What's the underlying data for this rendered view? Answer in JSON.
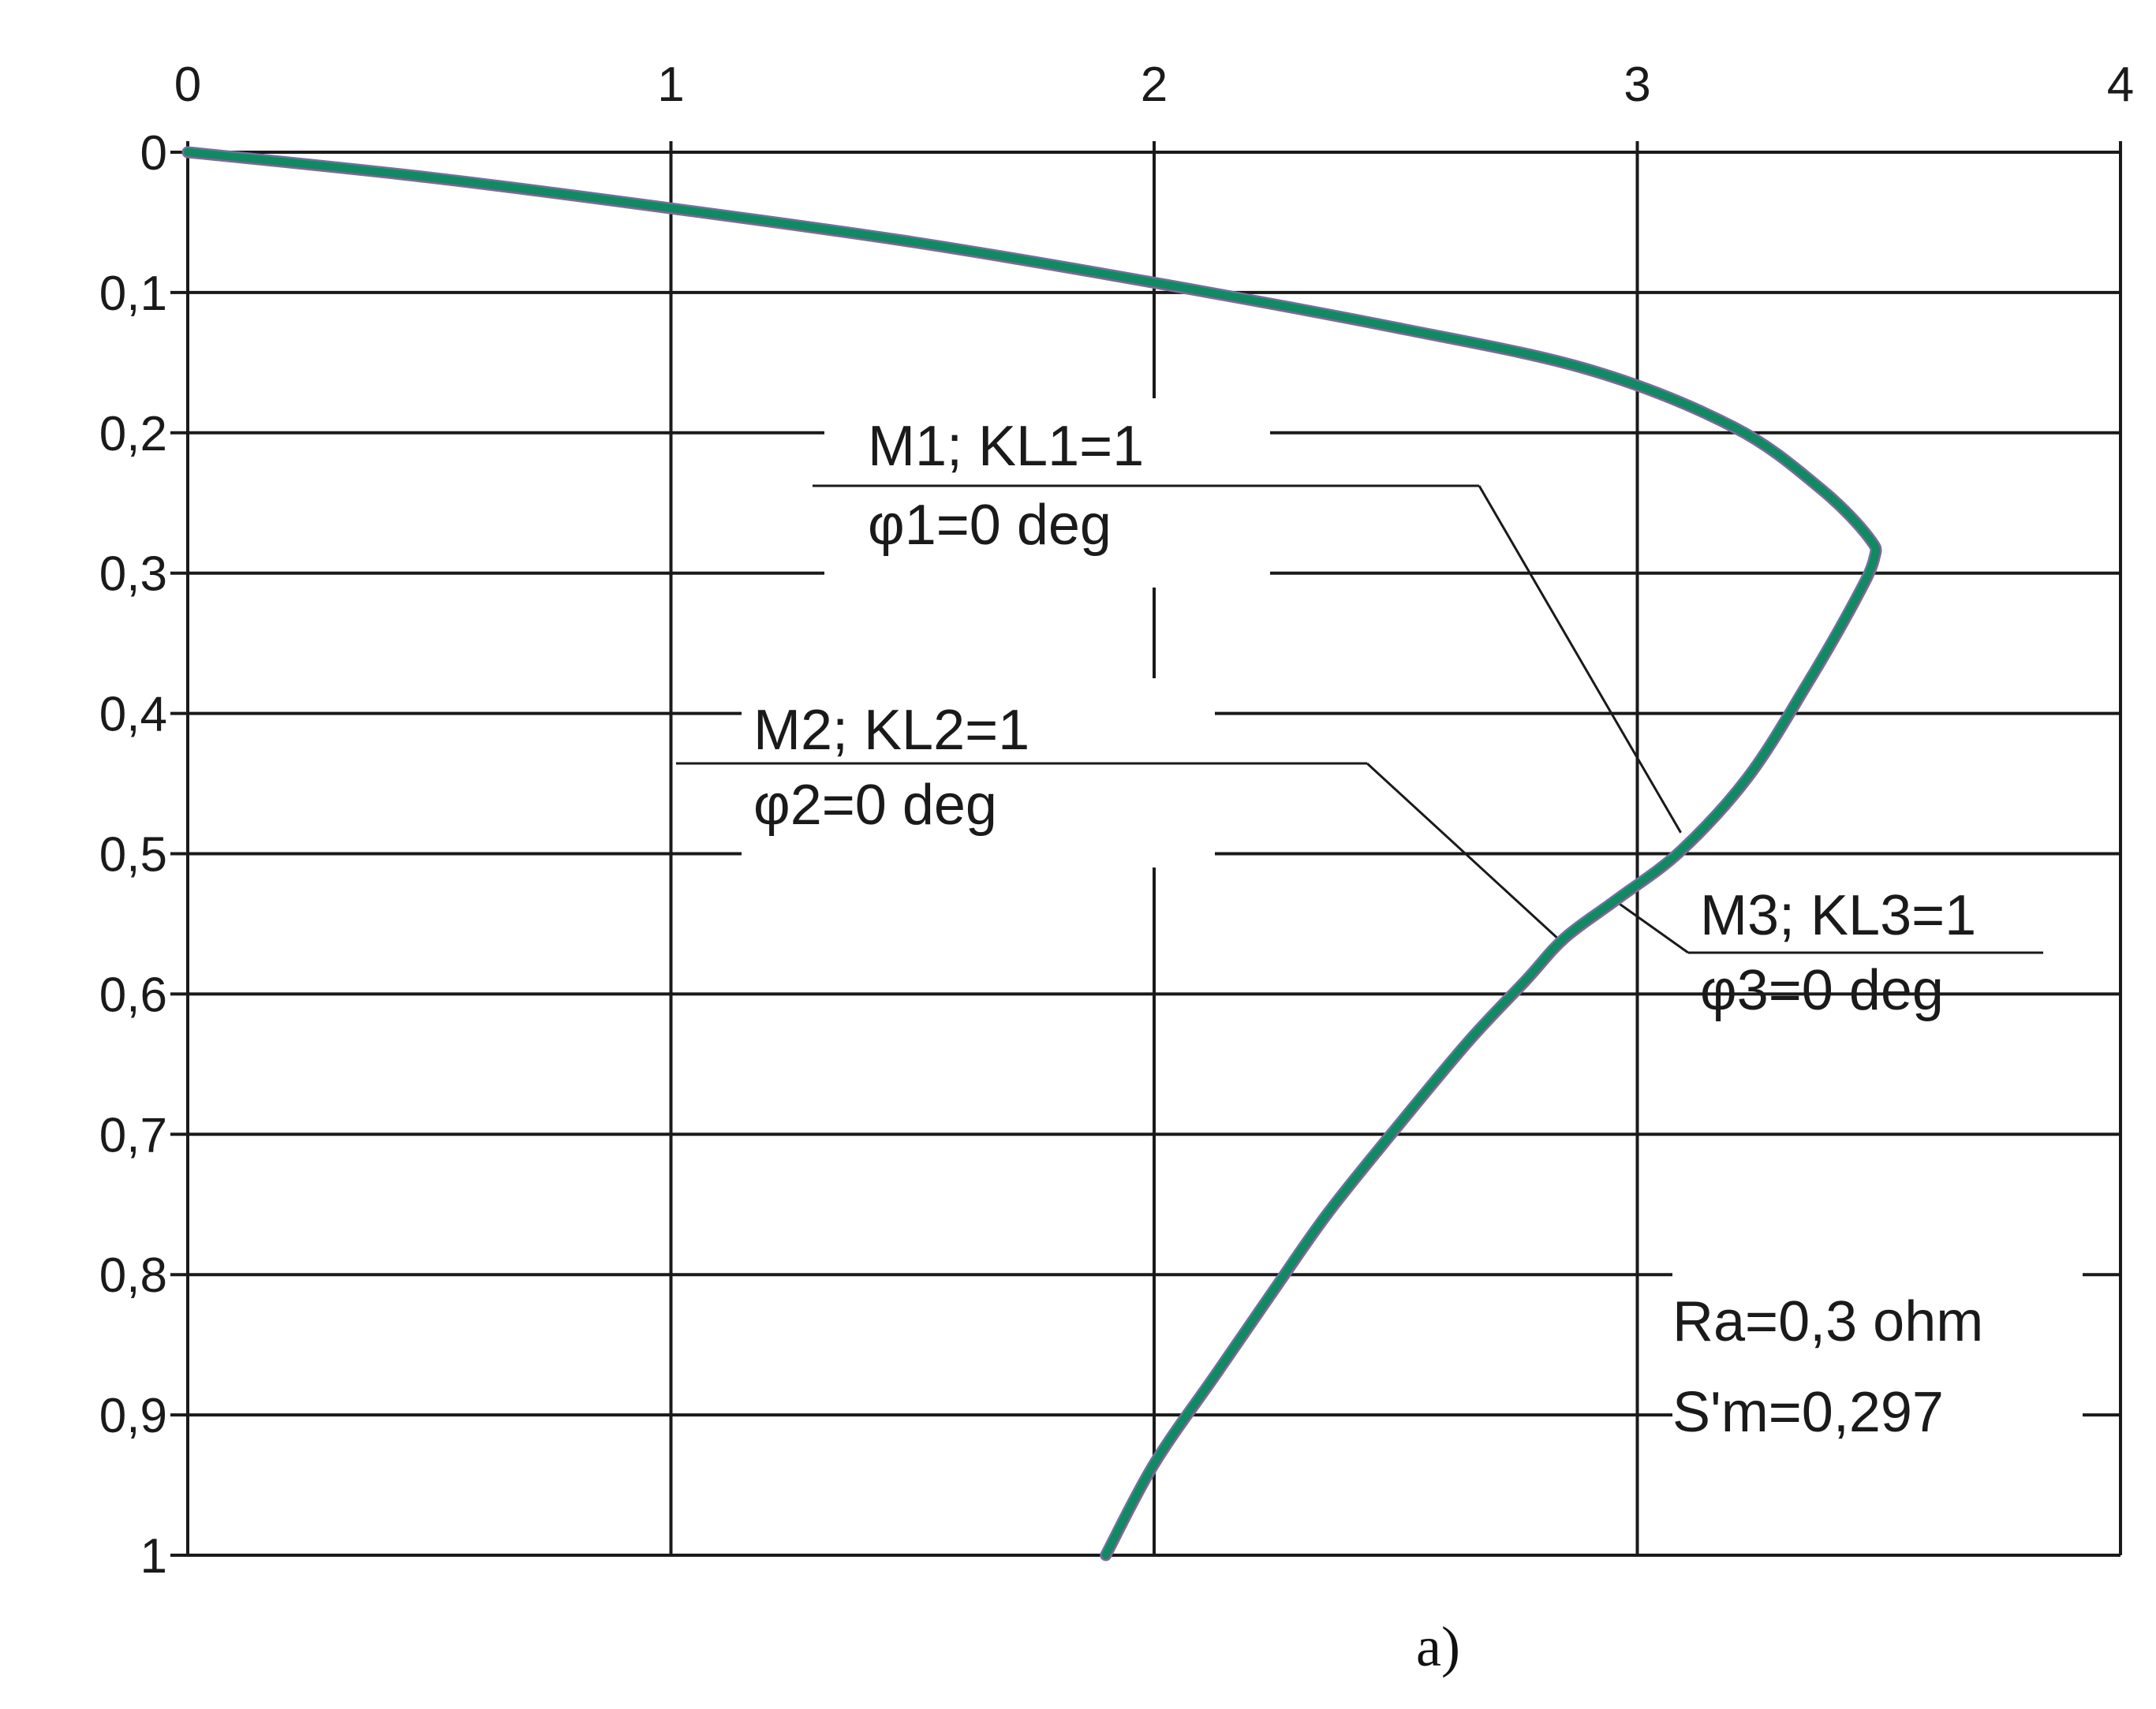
{
  "chart_data": {
    "type": "line",
    "x_axis": {
      "position": "top",
      "range": [
        0,
        4
      ],
      "ticks": [
        "0",
        "1",
        "2",
        "3",
        "4"
      ]
    },
    "y_axis": {
      "direction": "downward",
      "range": [
        0,
        1
      ],
      "ticks": [
        "0",
        "0,1",
        "0,2",
        "0,3",
        "0,4",
        "0,5",
        "0,6",
        "0,7",
        "0,8",
        "0,9",
        "1"
      ]
    },
    "grid": true,
    "series": [
      {
        "color": "#0f8a62",
        "points": [
          [
            0,
            0
          ],
          [
            0.5,
            0.018
          ],
          [
            1.0,
            0.04
          ],
          [
            1.5,
            0.064
          ],
          [
            2.0,
            0.093
          ],
          [
            2.5,
            0.125
          ],
          [
            2.9,
            0.155
          ],
          [
            3.2,
            0.196
          ],
          [
            3.38,
            0.24
          ],
          [
            3.48,
            0.275
          ],
          [
            3.49,
            0.29
          ],
          [
            3.45,
            0.32
          ],
          [
            3.35,
            0.38
          ],
          [
            3.23,
            0.445
          ],
          [
            3.09,
            0.498
          ],
          [
            2.96,
            0.532
          ],
          [
            2.85,
            0.56
          ],
          [
            2.77,
            0.59
          ],
          [
            2.65,
            0.634
          ],
          [
            2.5,
            0.696
          ],
          [
            2.36,
            0.756
          ],
          [
            2.25,
            0.81
          ],
          [
            2.13,
            0.87
          ],
          [
            2.0,
            0.935
          ],
          [
            1.9,
            1.0
          ]
        ]
      }
    ],
    "annotations": [
      {
        "lines": [
          "M1;  KL1=1",
          "φ1=0  deg"
        ],
        "points_to": [
          3.09,
          0.485
        ]
      },
      {
        "lines": [
          "M2; KL2=1",
          "φ2=0 deg"
        ],
        "points_to": [
          2.85,
          0.565
        ]
      },
      {
        "lines": [
          "M3; KL3=1",
          "φ3=0  deg"
        ],
        "points_to": [
          2.96,
          0.535
        ]
      },
      {
        "lines": [
          "Ra=0,3 ohm",
          "S'm=0,297"
        ]
      }
    ],
    "caption": "a)"
  }
}
